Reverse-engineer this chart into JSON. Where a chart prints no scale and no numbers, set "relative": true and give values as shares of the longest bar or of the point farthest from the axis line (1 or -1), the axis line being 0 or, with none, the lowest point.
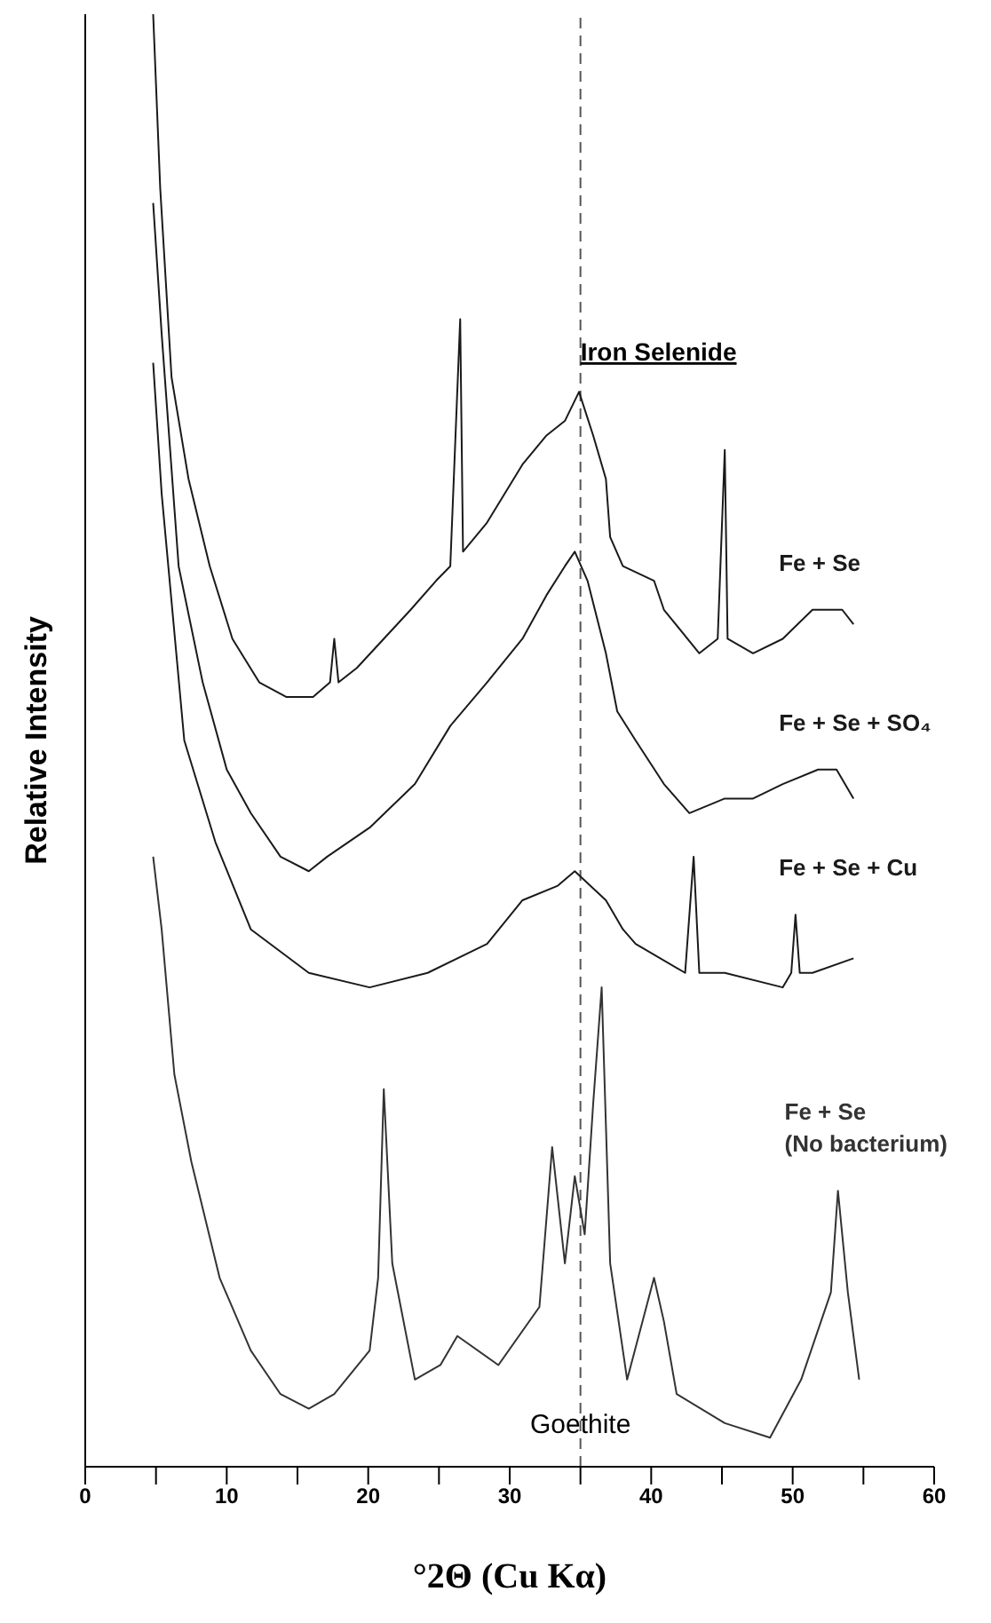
{
  "chart_data": {
    "type": "line",
    "relative": true,
    "xlabel": "°2Θ (Cu Kα)",
    "ylabel": "Relative Intensity",
    "xlim": [
      0,
      60
    ],
    "xticks": [
      0,
      {
        "value": 5,
        "label": null
      },
      10,
      {
        "value": 15,
        "label": null
      },
      20,
      {
        "value": 25,
        "label": null
      },
      30,
      {
        "value": 35,
        "label": null
      },
      40,
      {
        "value": 45,
        "label": null
      },
      50,
      {
        "value": 55,
        "label": null
      },
      60
    ],
    "grid": false,
    "legend": false,
    "marker": "none",
    "line_style": "solid",
    "ref_lines": [
      {
        "axis": "x",
        "value": 35,
        "label": "Iron Selenide",
        "line_style": "dashed",
        "color": "#555555"
      }
    ],
    "annotations": [
      {
        "text": "Goethite",
        "x": 35,
        "y": 0.03
      }
    ],
    "series": [
      {
        "name": "Fe + Se",
        "color": "#1a1a1a",
        "x": [
          4.8,
          5.3,
          6.1,
          7.3,
          8.8,
          10.4,
          12.3,
          14.2,
          16.1,
          17.3,
          17.6,
          17.9,
          19.2,
          21.1,
          23.0,
          24.8,
          25.8,
          26.5,
          26.7,
          28.4,
          30.9,
          32.6,
          33.9,
          34.9,
          35.9,
          36.8,
          37.1,
          38.0,
          40.2,
          40.9,
          43.4,
          44.7,
          45.2,
          45.4,
          47.2,
          49.3,
          51.4,
          53.5,
          54.3
        ],
        "values": [
          1.0,
          0.88,
          0.75,
          0.68,
          0.62,
          0.57,
          0.54,
          0.53,
          0.53,
          0.54,
          0.57,
          0.54,
          0.55,
          0.57,
          0.59,
          0.61,
          0.62,
          0.79,
          0.63,
          0.65,
          0.69,
          0.71,
          0.72,
          0.74,
          0.71,
          0.68,
          0.64,
          0.62,
          0.61,
          0.59,
          0.56,
          0.57,
          0.7,
          0.57,
          0.56,
          0.57,
          0.59,
          0.59,
          0.58
        ]
      },
      {
        "name": "Fe + Se + SO₄",
        "color": "#1a1a1a",
        "x": [
          4.8,
          5.4,
          6.3,
          6.6,
          8.3,
          10.0,
          11.7,
          13.8,
          15.8,
          17.1,
          20.1,
          23.3,
          25.8,
          28.4,
          30.9,
          32.6,
          33.9,
          34.6,
          35.5,
          36.8,
          37.6,
          38.9,
          40.9,
          42.7,
          45.2,
          47.2,
          49.3,
          51.8,
          53.1,
          54.3
        ],
        "values": [
          0.87,
          0.78,
          0.66,
          0.62,
          0.54,
          0.48,
          0.45,
          0.42,
          0.41,
          0.42,
          0.44,
          0.47,
          0.51,
          0.54,
          0.57,
          0.6,
          0.62,
          0.63,
          0.61,
          0.56,
          0.52,
          0.5,
          0.47,
          0.45,
          0.46,
          0.46,
          0.47,
          0.48,
          0.48,
          0.46
        ]
      },
      {
        "name": "Fe + Se + Cu",
        "color": "#1a1a1a",
        "x": [
          4.8,
          5.4,
          7.0,
          9.2,
          11.7,
          15.8,
          20.1,
          24.2,
          28.4,
          30.9,
          33.4,
          34.6,
          36.8,
          38.0,
          38.9,
          42.4,
          43.0,
          43.4,
          45.2,
          49.3,
          49.9,
          50.2,
          50.5,
          51.4,
          54.3
        ],
        "values": [
          0.76,
          0.67,
          0.5,
          0.43,
          0.37,
          0.34,
          0.33,
          0.34,
          0.36,
          0.39,
          0.4,
          0.41,
          0.39,
          0.37,
          0.36,
          0.34,
          0.42,
          0.34,
          0.34,
          0.33,
          0.34,
          0.38,
          0.34,
          0.34,
          0.35
        ]
      },
      {
        "name": "Fe + Se (No bacterium)",
        "color": "#333333",
        "x": [
          4.8,
          5.4,
          6.3,
          7.5,
          9.5,
          11.7,
          13.8,
          15.8,
          17.6,
          20.1,
          20.7,
          21.1,
          21.7,
          23.3,
          25.1,
          26.3,
          29.2,
          32.1,
          33.0,
          33.9,
          34.6,
          35.3,
          35.9,
          36.5,
          37.1,
          38.3,
          40.2,
          40.9,
          41.8,
          45.2,
          48.4,
          50.6,
          52.7,
          53.2,
          53.9,
          54.7
        ],
        "values": [
          0.42,
          0.37,
          0.27,
          0.21,
          0.13,
          0.08,
          0.05,
          0.04,
          0.05,
          0.08,
          0.13,
          0.26,
          0.14,
          0.06,
          0.07,
          0.09,
          0.07,
          0.11,
          0.22,
          0.14,
          0.2,
          0.16,
          0.25,
          0.33,
          0.14,
          0.06,
          0.13,
          0.1,
          0.05,
          0.03,
          0.02,
          0.06,
          0.12,
          0.19,
          0.12,
          0.06
        ]
      }
    ]
  }
}
